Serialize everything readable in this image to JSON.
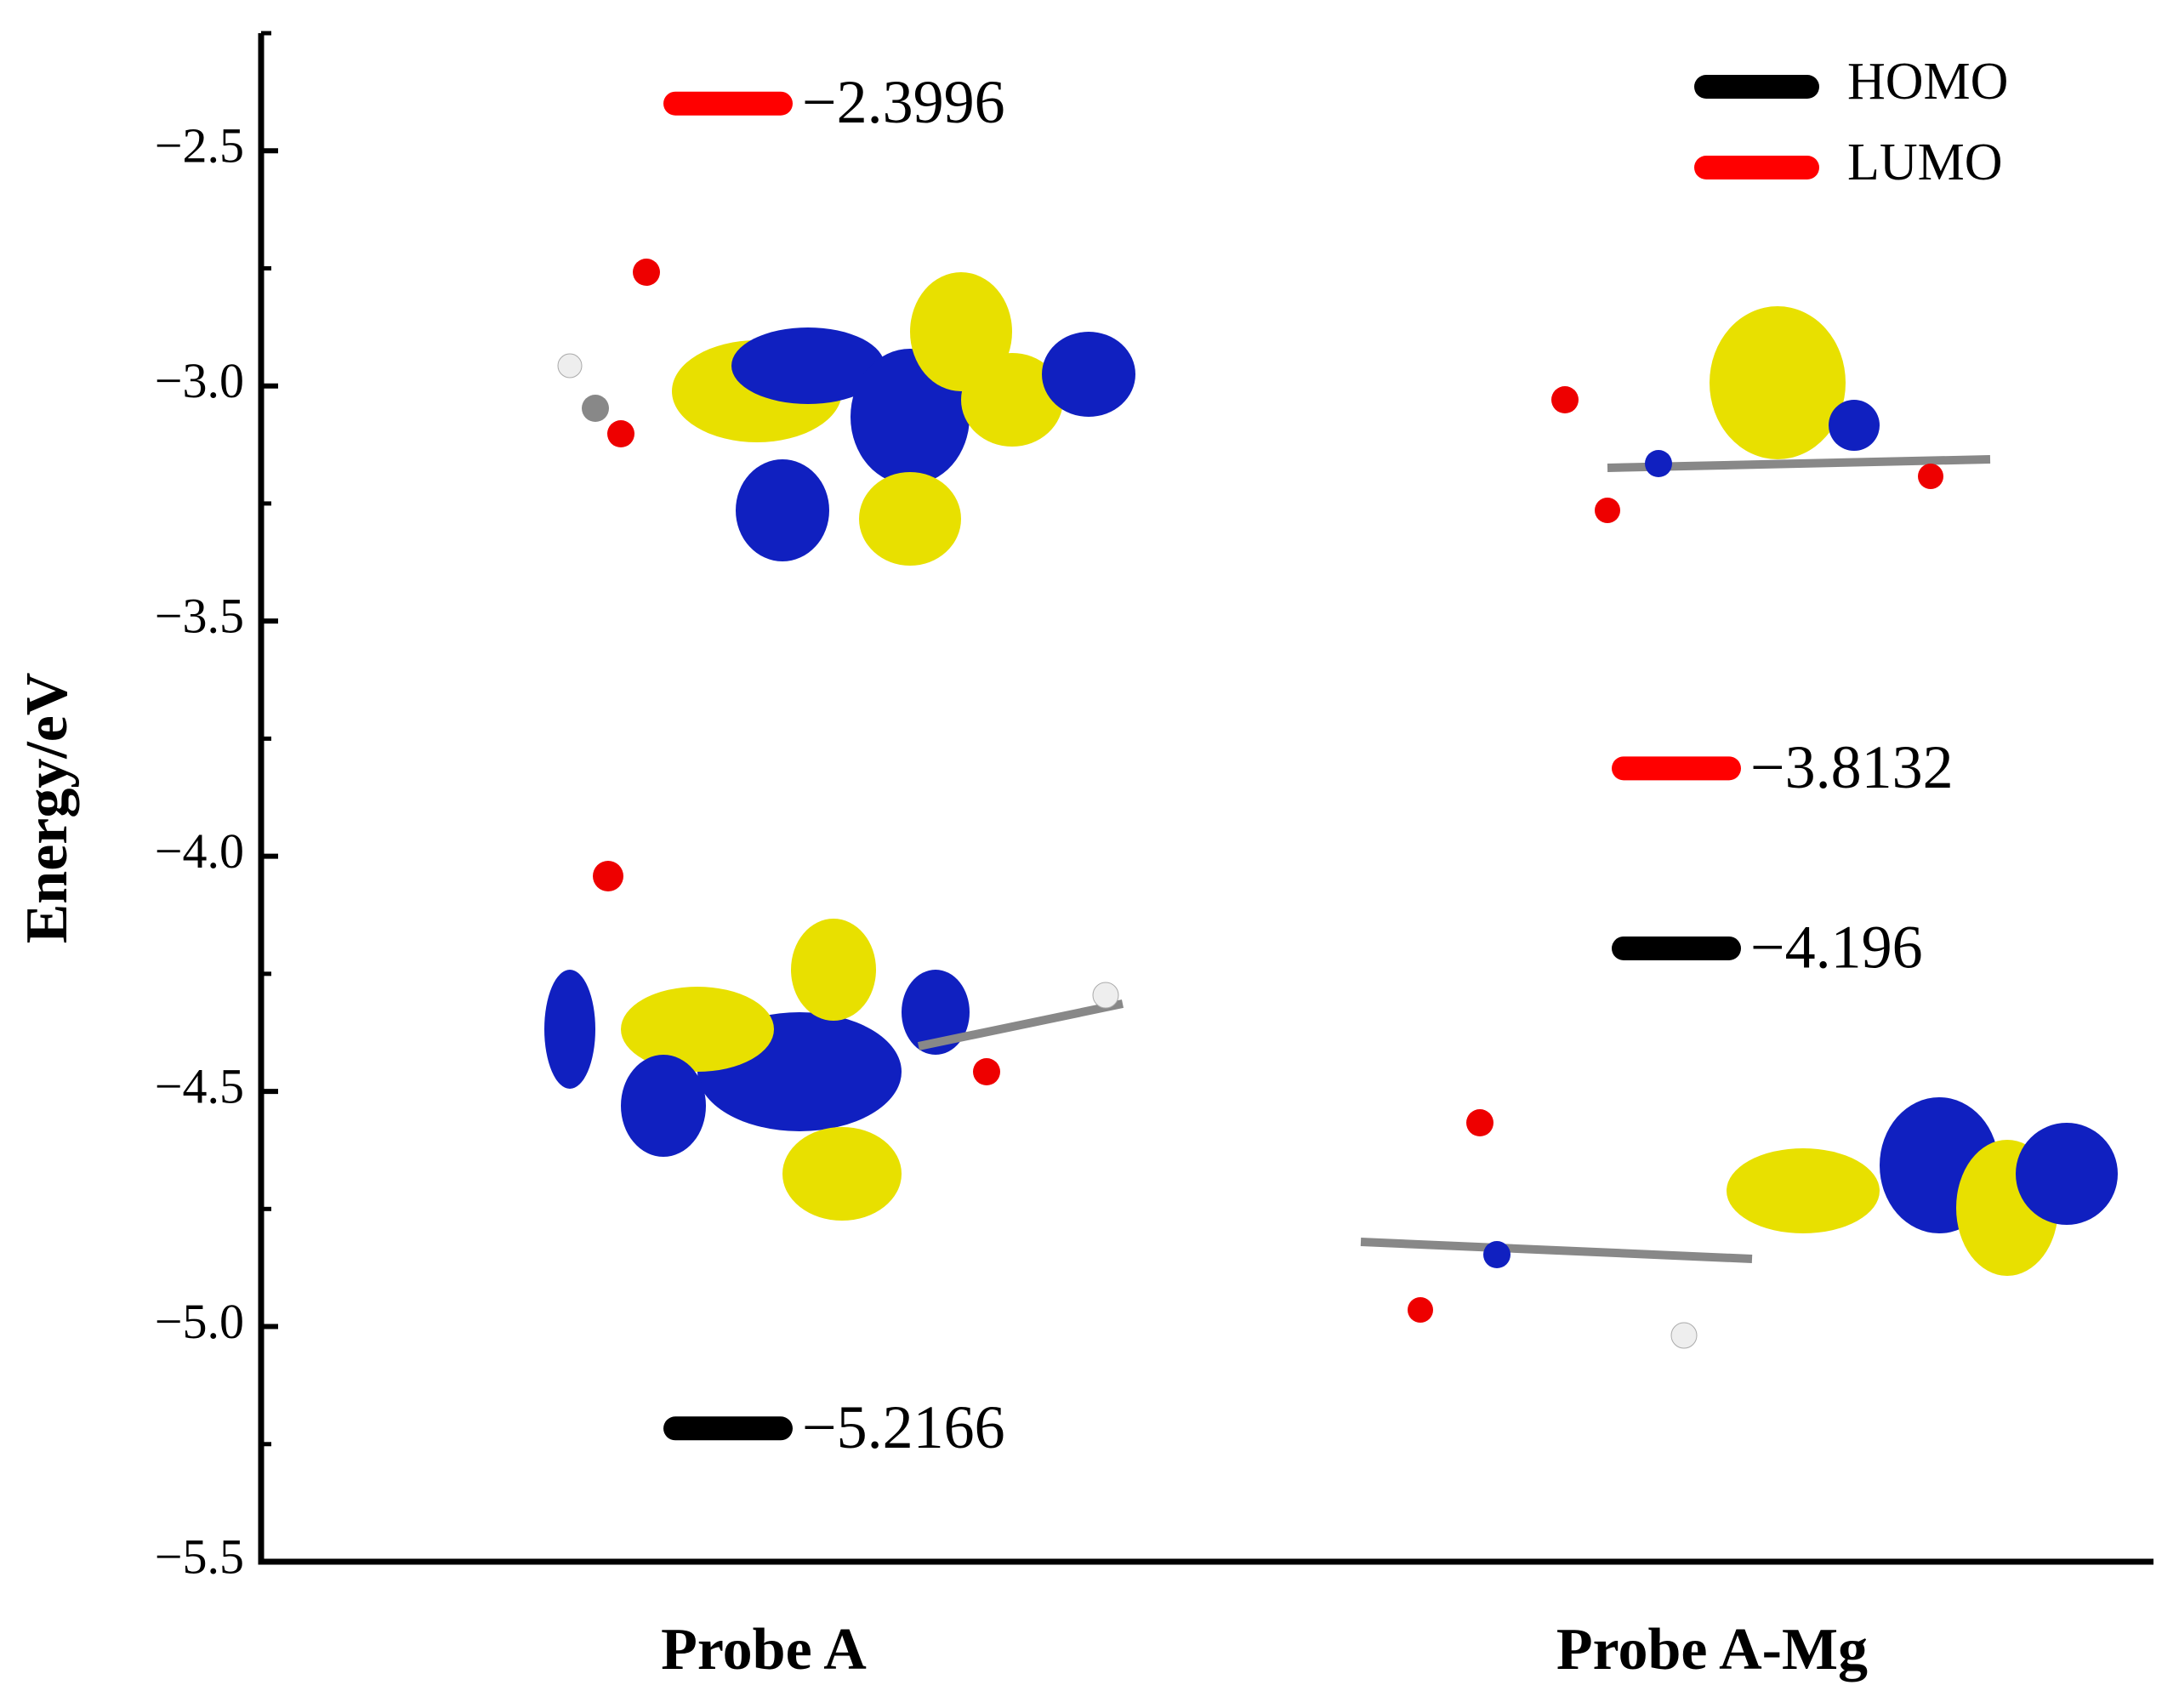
{
  "chart_data": {
    "type": "energy-levels",
    "ylabel": "Energy/eV",
    "categories": [
      "Probe A",
      "Probe A-Mg"
    ],
    "series": [
      {
        "name": "HOMO",
        "color": "#000000",
        "values": [
          -5.2166,
          -4.196
        ],
        "value_labels": [
          "−5.2166",
          "−4.196"
        ]
      },
      {
        "name": "LUMO",
        "color": "#ff0000",
        "values": [
          -2.3996,
          -3.8132
        ],
        "value_labels": [
          "−2.3996",
          "−3.8132"
        ]
      }
    ],
    "ylim": [
      -5.5,
      -2.25
    ],
    "yticks": [
      {
        "value": -2.5,
        "label": "−2.5"
      },
      {
        "value": -3.0,
        "label": "−3.0"
      },
      {
        "value": -3.5,
        "label": "−3.5"
      },
      {
        "value": -4.0,
        "label": "−4.0"
      },
      {
        "value": -4.5,
        "label": "−4.5"
      },
      {
        "value": -5.0,
        "label": "−5.0"
      },
      {
        "value": -5.5,
        "label": "−5.5"
      }
    ],
    "yminorticks": [
      -2.25,
      -2.75,
      -3.25,
      -3.75,
      -4.25,
      -4.75,
      -5.25
    ],
    "legend": "upper right"
  }
}
